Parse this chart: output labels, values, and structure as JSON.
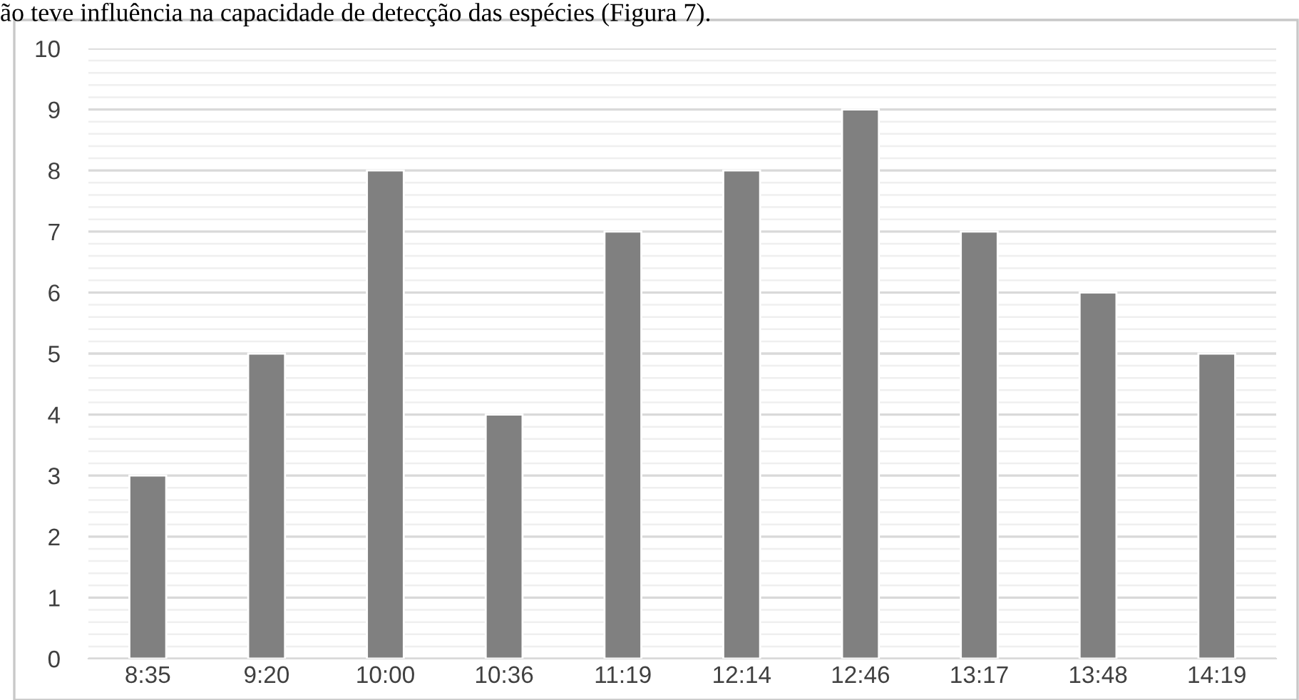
{
  "chart_data": {
    "type": "bar",
    "categories": [
      "8:35",
      "9:20",
      "10:00",
      "10:36",
      "11:19",
      "12:14",
      "12:46",
      "13:17",
      "13:48",
      "14:19"
    ],
    "values": [
      3,
      5,
      8,
      4,
      7,
      8,
      9,
      7,
      6,
      5
    ],
    "color": "#808080",
    "ylim": [
      0,
      10
    ],
    "yticks": [
      0,
      1,
      2,
      3,
      4,
      5,
      6,
      7,
      8,
      9,
      10
    ],
    "grid": "y",
    "annotations": [
      "ão teve influência na capacidade de detecção das espécies (Figura 7)."
    ]
  }
}
